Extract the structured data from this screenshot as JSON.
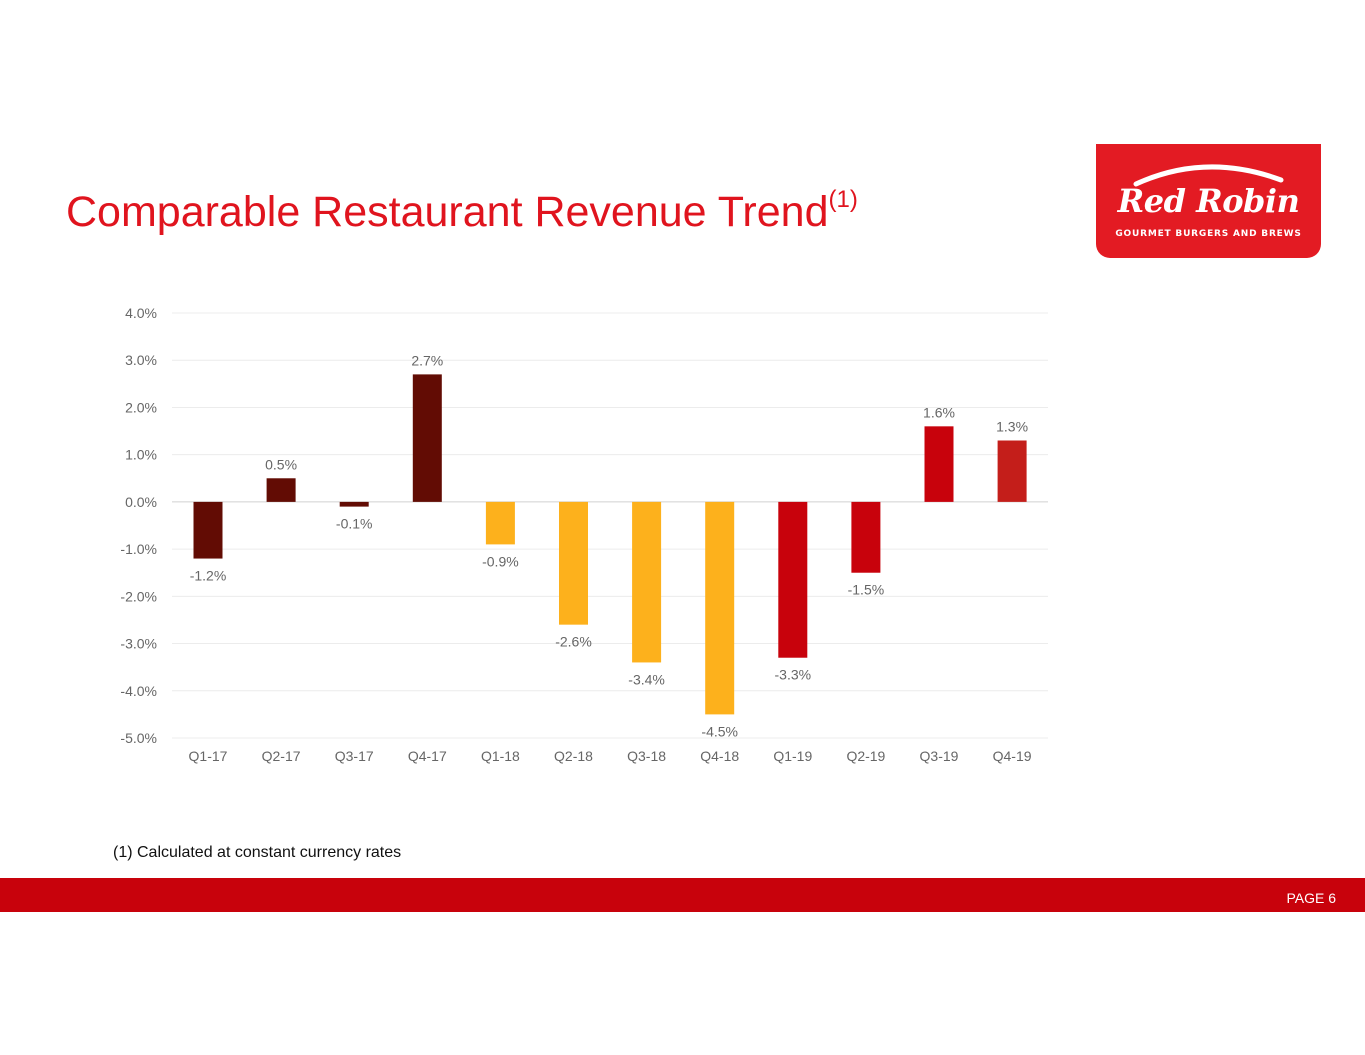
{
  "title": "Comparable Restaurant Revenue Trend",
  "title_superscript": "(1)",
  "logo": {
    "wordmark": "Red Robin",
    "tagline": "GOURMET BURGERS AND BREWS"
  },
  "footnote": "(1) Calculated at constant currency rates",
  "page_label": "PAGE 6",
  "colors": {
    "title": "#e0141e",
    "footer": "#c8020c",
    "logo_bg": "#e31b23",
    "series_2017": "#620c04",
    "series_2018": "#fdb11c",
    "series_2019": "#c8020c",
    "series_q4_19": "#c41e1a"
  },
  "chart_data": {
    "type": "bar",
    "title": "",
    "xlabel": "",
    "ylabel": "",
    "ylim": [
      -5.0,
      4.0
    ],
    "grid": true,
    "y_ticks": [
      "4.0%",
      "3.0%",
      "2.0%",
      "1.0%",
      "0.0%",
      "-1.0%",
      "-2.0%",
      "-3.0%",
      "-4.0%",
      "-5.0%"
    ],
    "y_tick_values": [
      4,
      3,
      2,
      1,
      0,
      -1,
      -2,
      -3,
      -4,
      -5
    ],
    "categories": [
      "Q1-17",
      "Q2-17",
      "Q3-17",
      "Q4-17",
      "Q1-18",
      "Q2-18",
      "Q3-18",
      "Q4-18",
      "Q1-19",
      "Q2-19",
      "Q3-19",
      "Q4-19"
    ],
    "values": [
      -1.2,
      0.5,
      -0.1,
      2.7,
      -0.9,
      -2.6,
      -3.4,
      -4.5,
      -3.3,
      -1.5,
      1.6,
      1.3
    ],
    "data_labels": [
      "-1.2%",
      "0.5%",
      "-0.1%",
      "2.7%",
      "-0.9%",
      "-2.6%",
      "-3.4%",
      "-4.5%",
      "-3.3%",
      "-1.5%",
      "1.6%",
      "1.3%"
    ],
    "bar_colors": [
      "#620c04",
      "#620c04",
      "#620c04",
      "#620c04",
      "#fdb11c",
      "#fdb11c",
      "#fdb11c",
      "#fdb11c",
      "#c8020c",
      "#c8020c",
      "#c8020c",
      "#c41e1a"
    ]
  }
}
